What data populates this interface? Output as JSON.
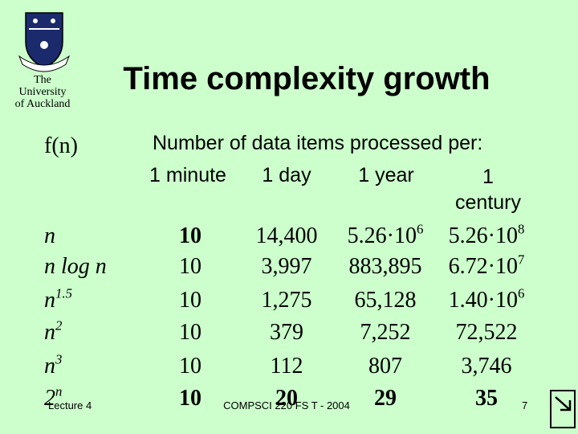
{
  "logo": {
    "lines": [
      "The",
      "University",
      "of Auckland"
    ]
  },
  "title": "Time complexity growth",
  "table": {
    "corner": "f(n)",
    "group_header": "Number of data items processed per:",
    "columns": [
      "1 minute",
      "1 day",
      "1 year",
      [
        "1",
        "century"
      ]
    ],
    "rows": [
      [
        "n",
        "10",
        "14,400",
        {
          "base": "5.26·10",
          "exp": "6"
        },
        {
          "base": "5.26·10",
          "exp": "8"
        }
      ],
      [
        "n log n",
        "10",
        "3,997",
        "883,895",
        {
          "base": "6.72·10",
          "exp": "7"
        }
      ],
      [
        {
          "base": "n",
          "exp": "1.5"
        },
        "10",
        "1,275",
        "65,128",
        {
          "base": "1.40·10",
          "exp": "6"
        }
      ],
      [
        {
          "base": "n",
          "exp": "2"
        },
        "10",
        "379",
        "7,252",
        "72,522"
      ],
      [
        {
          "base": "n",
          "exp": "3"
        },
        "10",
        "112",
        "807",
        "3,746"
      ],
      [
        {
          "base": "2",
          "exp": "n"
        },
        "10",
        "20",
        "29",
        "35"
      ]
    ]
  },
  "footer": {
    "left": "Lecture 4",
    "center": "COMPSCI 220 FS T - 2004",
    "page": "7"
  }
}
